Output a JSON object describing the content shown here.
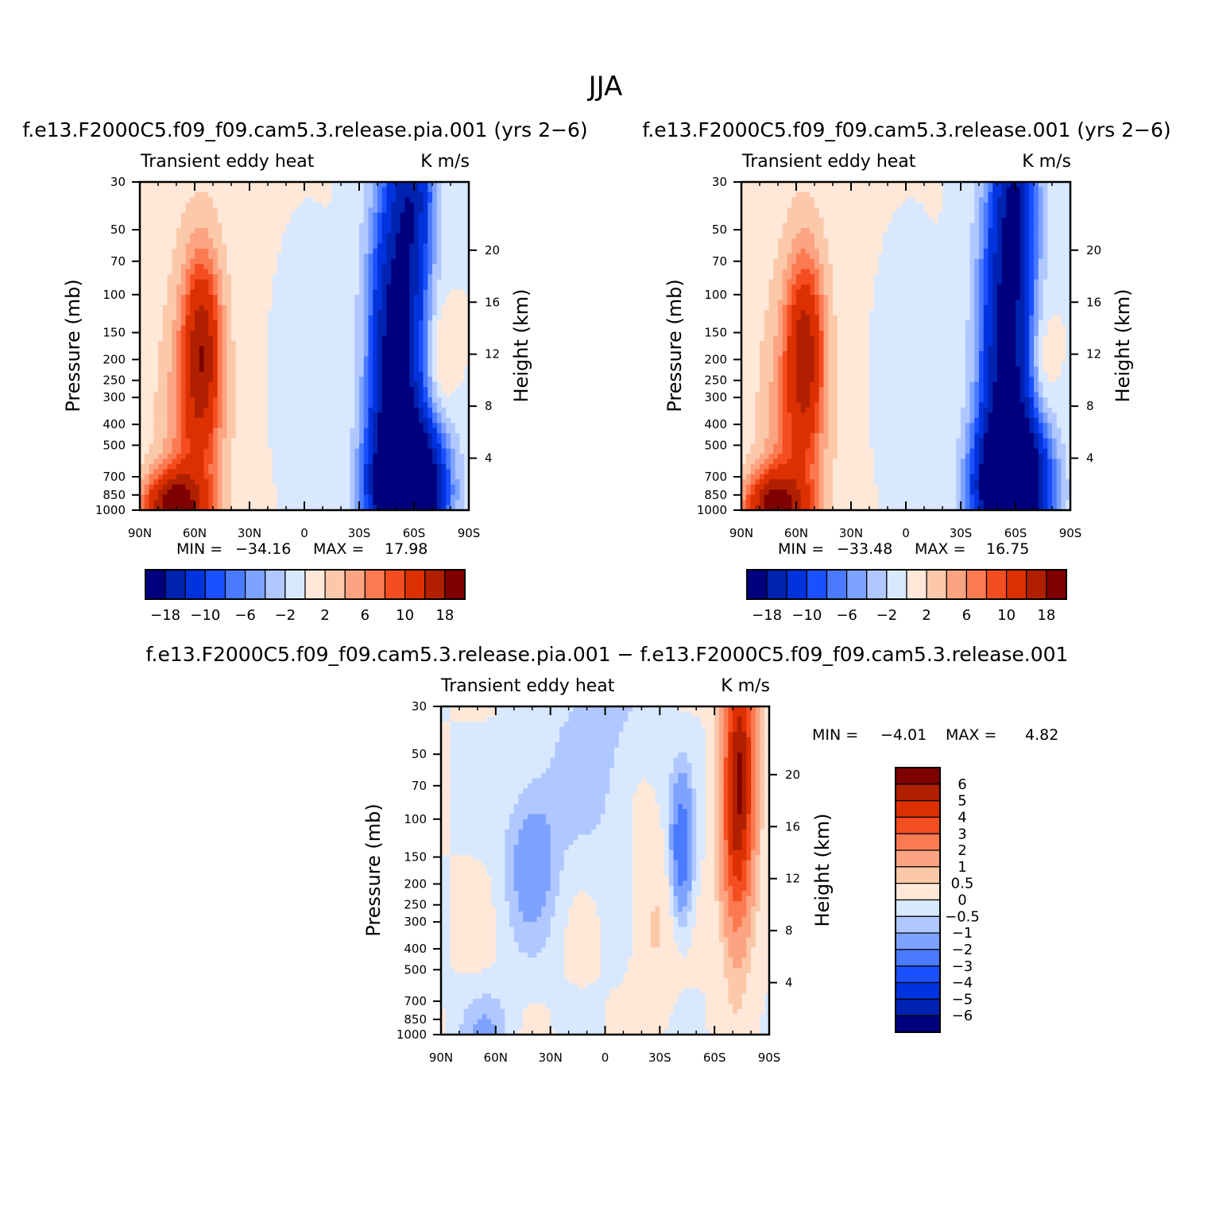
{
  "title": "JJA",
  "chart_data": [
    {
      "type": "heatmap",
      "title": "f.e13.F2000C5.f09_f09.cam5.3.release.pia.001 (yrs 2−6)",
      "variable": "Transient eddy heat",
      "units": "K m/s",
      "xlabel": "",
      "ylabel": "Pressure (mb)",
      "ylabel_right": "Height (km)",
      "x_ticks": [
        "90N",
        "60N",
        "30N",
        "0",
        "30S",
        "60S",
        "90S"
      ],
      "y_ticks": [
        "30",
        "50",
        "70",
        "100",
        "150",
        "200",
        "250",
        "300",
        "400",
        "500",
        "700",
        "850",
        "1000"
      ],
      "y_ticks_right": [
        "20",
        "16",
        "12",
        "8",
        "4"
      ],
      "min_label": "MIN =",
      "min_value": "−34.16",
      "max_label": "MAX =",
      "max_value": "17.98",
      "colorbar_labels": [
        "−18",
        "−10",
        "−6",
        "−2",
        "2",
        "6",
        "10",
        "18"
      ],
      "features": [
        {
          "lat": -57,
          "p": 800,
          "value": -34
        },
        {
          "lat": -50,
          "p": 200,
          "value": -22
        },
        {
          "lat": 56,
          "p": 180,
          "value": 14
        },
        {
          "lat": 72,
          "p": 960,
          "value": 18
        }
      ]
    },
    {
      "type": "heatmap",
      "title": "f.e13.F2000C5.f09_f09.cam5.3.release.001 (yrs 2−6)",
      "variable": "Transient eddy heat",
      "units": "K m/s",
      "xlabel": "",
      "ylabel": "Pressure (mb)",
      "ylabel_right": "Height (km)",
      "x_ticks": [
        "90N",
        "60N",
        "30N",
        "0",
        "30S",
        "60S",
        "90S"
      ],
      "y_ticks": [
        "30",
        "50",
        "70",
        "100",
        "150",
        "200",
        "250",
        "300",
        "400",
        "500",
        "700",
        "850",
        "1000"
      ],
      "y_ticks_right": [
        "20",
        "16",
        "12",
        "8",
        "4"
      ],
      "min_label": "MIN =",
      "min_value": "−33.48",
      "max_label": "MAX =",
      "max_value": "16.75",
      "colorbar_labels": [
        "−18",
        "−10",
        "−6",
        "−2",
        "2",
        "6",
        "10",
        "18"
      ],
      "features": [
        {
          "lat": -58,
          "p": 800,
          "value": -33
        },
        {
          "lat": -55,
          "p": 200,
          "value": -20
        },
        {
          "lat": 55,
          "p": 180,
          "value": 13
        },
        {
          "lat": 72,
          "p": 960,
          "value": 17
        }
      ]
    },
    {
      "type": "heatmap",
      "title": "f.e13.F2000C5.f09_f09.cam5.3.release.pia.001 − f.e13.F2000C5.f09_f09.cam5.3.release.001",
      "variable": "Transient eddy heat",
      "units": "K m/s",
      "xlabel": "",
      "ylabel": "Pressure (mb)",
      "ylabel_right": "Height (km)",
      "x_ticks": [
        "90N",
        "60N",
        "30N",
        "0",
        "30S",
        "60S",
        "90S"
      ],
      "y_ticks": [
        "30",
        "50",
        "70",
        "100",
        "150",
        "200",
        "250",
        "300",
        "400",
        "500",
        "700",
        "850",
        "1000"
      ],
      "y_ticks_right": [
        "20",
        "16",
        "12",
        "8",
        "4"
      ],
      "min_label": "MIN =",
      "min_value": "−4.01",
      "max_label": "MAX =",
      "max_value": "4.82",
      "colorbar_labels": [
        "6",
        "5",
        "4",
        "3",
        "2",
        "1",
        "0.5",
        "0",
        "−0.5",
        "−1",
        "−2",
        "−3",
        "−4",
        "−5",
        "−6"
      ],
      "features": [
        {
          "lat": -74,
          "p": 45,
          "value": 4.8
        },
        {
          "lat": -72,
          "p": 150,
          "value": 3
        },
        {
          "lat": -42,
          "p": 140,
          "value": -3
        },
        {
          "lat": 40,
          "p": 150,
          "value": -1.5
        }
      ]
    }
  ],
  "palette": [
    "#00007f",
    "#0022b0",
    "#0033dd",
    "#1a50ff",
    "#4a7aff",
    "#7ea2ff",
    "#b0c8ff",
    "#d8e8ff",
    "#ffe8d8",
    "#fcc8aa",
    "#fca482",
    "#fc7a52",
    "#f44d20",
    "#dd3000",
    "#b02000",
    "#7f0000"
  ]
}
